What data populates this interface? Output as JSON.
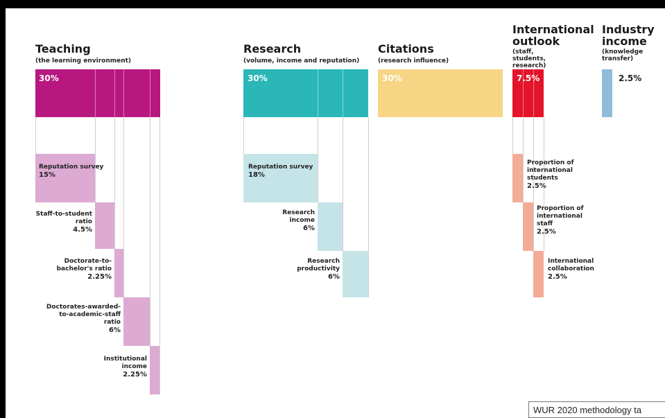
{
  "teaching": {
    "title": "Teaching",
    "subtitle": "(the learning environment)",
    "pct": "30%",
    "color": "#b8177f",
    "sub_color": "#dcaad2",
    "items": [
      {
        "label": "Reputation survey",
        "pct": "15%"
      },
      {
        "label": "Staff-to-student ratio",
        "pct": "4.5%"
      },
      {
        "label": "Doctorate-to-bachelor's ratio",
        "pct": "2.25%"
      },
      {
        "label": "Doctorates-awarded-to-academic-staff ratio",
        "pct": "6%"
      },
      {
        "label": "Institutional income",
        "pct": "2.25%"
      }
    ]
  },
  "research": {
    "title": "Research",
    "subtitle": "(volume, income and reputation)",
    "pct": "30%",
    "color": "#2bb7b8",
    "sub_color": "#c5e4e8",
    "items": [
      {
        "label": "Reputation survey",
        "pct": "18%"
      },
      {
        "label": "Research income",
        "pct": "6%"
      },
      {
        "label": "Research productivity",
        "pct": "6%"
      }
    ]
  },
  "citations": {
    "title": "Citations",
    "subtitle": "(research influence)",
    "pct": "30%",
    "color": "#f6d585"
  },
  "international": {
    "title": "International outlook",
    "subtitle": "(staff, students, research)",
    "pct": "7.5%",
    "color": "#e3132a",
    "sub_color": "#f2ac98",
    "items": [
      {
        "label": "Proportion of international students",
        "pct": "2.5%"
      },
      {
        "label": "Proportion of international staff",
        "pct": "2.5%"
      },
      {
        "label": "International collaboration",
        "pct": "2.5%"
      }
    ]
  },
  "industry": {
    "title": "Industry income",
    "subtitle": "(knowledge transfer)",
    "pct": "2.5%",
    "color": "#8fbcd8"
  },
  "tooltip": "WUR 2020 methodology ta"
}
